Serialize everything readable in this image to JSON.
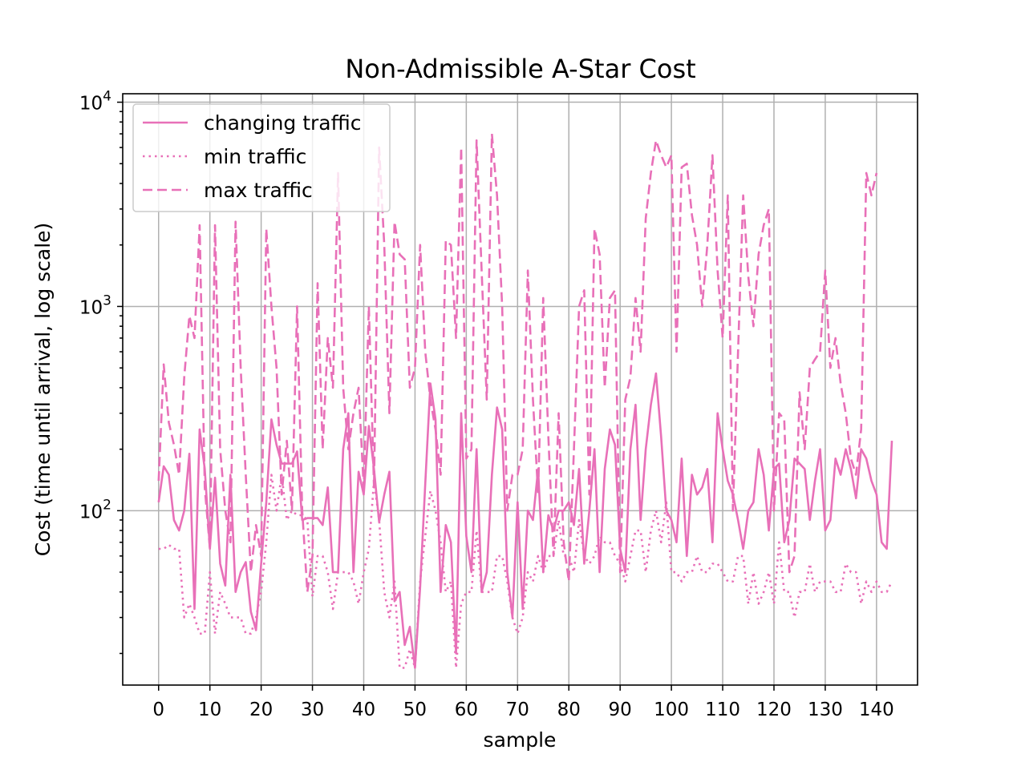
{
  "chart_data": {
    "type": "line",
    "title": "Non-Admissible A-Star Cost",
    "xlabel": "sample",
    "ylabel": "Cost (time until arrival, log scale)",
    "yscale": "log",
    "xlim": [
      -7,
      148
    ],
    "ylim": [
      14,
      11000
    ],
    "grid": true,
    "legend_position": "upper-left",
    "color": "#e870b8",
    "xticks": [
      0,
      10,
      20,
      30,
      40,
      50,
      60,
      70,
      80,
      90,
      100,
      110,
      120,
      130,
      140
    ],
    "yticks": [
      {
        "value": 100,
        "base": "10",
        "exp": "2"
      },
      {
        "value": 1000,
        "base": "10",
        "exp": "3"
      },
      {
        "value": 10000,
        "base": "10",
        "exp": "4"
      }
    ],
    "series": [
      {
        "name": "changing traffic",
        "style": "solid",
        "values": [
          110,
          165,
          150,
          90,
          80,
          100,
          190,
          33,
          250,
          160,
          65,
          145,
          55,
          43,
          150,
          40,
          50,
          56,
          32,
          26,
          55,
          110,
          280,
          210,
          170,
          170,
          170,
          195,
          90,
          92,
          92,
          92,
          85,
          130,
          50,
          50,
          200,
          300,
          50,
          155,
          120,
          260,
          160,
          88,
          120,
          155,
          36,
          40,
          22,
          27,
          17,
          42,
          135,
          420,
          280,
          40,
          85,
          70,
          20,
          300,
          75,
          50,
          200,
          40,
          50,
          150,
          320,
          250,
          50,
          30,
          110,
          33,
          100,
          90,
          160,
          50,
          95,
          80,
          100,
          100,
          110,
          85,
          160,
          55,
          100,
          200,
          50,
          160,
          250,
          210,
          65,
          50,
          200,
          330,
          90,
          200,
          330,
          470,
          230,
          100,
          90,
          70,
          180,
          60,
          150,
          120,
          130,
          160,
          70,
          300,
          200,
          140,
          120,
          90,
          65,
          100,
          110,
          200,
          150,
          80,
          160,
          170,
          70,
          90,
          180,
          170,
          160,
          90,
          140,
          200,
          80,
          90,
          180,
          150,
          200,
          160,
          115,
          200,
          180,
          140,
          120,
          70,
          65,
          220
        ]
      },
      {
        "name": "min traffic",
        "style": "dotted",
        "values": [
          65,
          65,
          68,
          65,
          65,
          30,
          35,
          30,
          25,
          25,
          50,
          25,
          40,
          35,
          30,
          30,
          30,
          25,
          25,
          30,
          40,
          70,
          150,
          100,
          150,
          90,
          100,
          95,
          95,
          90,
          38,
          60,
          60,
          50,
          33,
          50,
          50,
          50,
          45,
          35,
          50,
          65,
          140,
          90,
          40,
          30,
          45,
          17,
          17,
          21,
          17,
          45,
          75,
          125,
          100,
          70,
          40,
          45,
          17,
          35,
          40,
          40,
          80,
          40,
          40,
          40,
          60,
          60,
          45,
          30,
          25,
          30,
          50,
          45,
          60,
          50,
          60,
          60,
          90,
          60,
          60,
          50,
          90,
          60,
          55,
          60,
          75,
          70,
          70,
          60,
          55,
          45,
          60,
          80,
          80,
          50,
          80,
          100,
          70,
          110,
          50,
          50,
          45,
          50,
          50,
          60,
          50,
          50,
          55,
          55,
          50,
          45,
          45,
          60,
          60,
          35,
          50,
          35,
          40,
          50,
          35,
          70,
          40,
          40,
          30,
          40,
          40,
          55,
          40,
          45,
          45,
          45,
          40,
          40,
          55,
          50,
          50,
          35,
          45,
          40,
          45,
          40,
          40,
          45
        ]
      },
      {
        "name": "max traffic",
        "style": "dashed",
        "values": [
          140,
          520,
          270,
          210,
          150,
          450,
          900,
          700,
          2500,
          130,
          65,
          2500,
          200,
          100,
          70,
          2600,
          500,
          150,
          50,
          85,
          60,
          2400,
          1000,
          500,
          120,
          220,
          100,
          1000,
          100,
          40,
          60,
          1300,
          200,
          700,
          400,
          4500,
          400,
          200,
          300,
          400,
          130,
          1000,
          130,
          6000,
          2000,
          300,
          2600,
          1800,
          1700,
          400,
          500,
          2000,
          600,
          350,
          250,
          150,
          2100,
          2000,
          700,
          6000,
          180,
          200,
          6500,
          1500,
          350,
          7000,
          3500,
          1000,
          100,
          150,
          150,
          200,
          1500,
          350,
          120,
          1100,
          230,
          60,
          300,
          70,
          45,
          200,
          1000,
          1200,
          120,
          2400,
          1800,
          400,
          1100,
          1200,
          50,
          350,
          450,
          1100,
          600,
          2700,
          4500,
          6500,
          5500,
          4800,
          5500,
          600,
          4800,
          5000,
          2800,
          2000,
          1000,
          2000,
          5500,
          1500,
          700,
          3500,
          100,
          600,
          3500,
          1400,
          800,
          1800,
          2500,
          3000,
          100,
          300,
          280,
          50,
          60,
          380,
          200,
          500,
          550,
          600,
          1500,
          500,
          700,
          420,
          300,
          180,
          150,
          250,
          4500,
          3500,
          4500
        ]
      }
    ]
  }
}
